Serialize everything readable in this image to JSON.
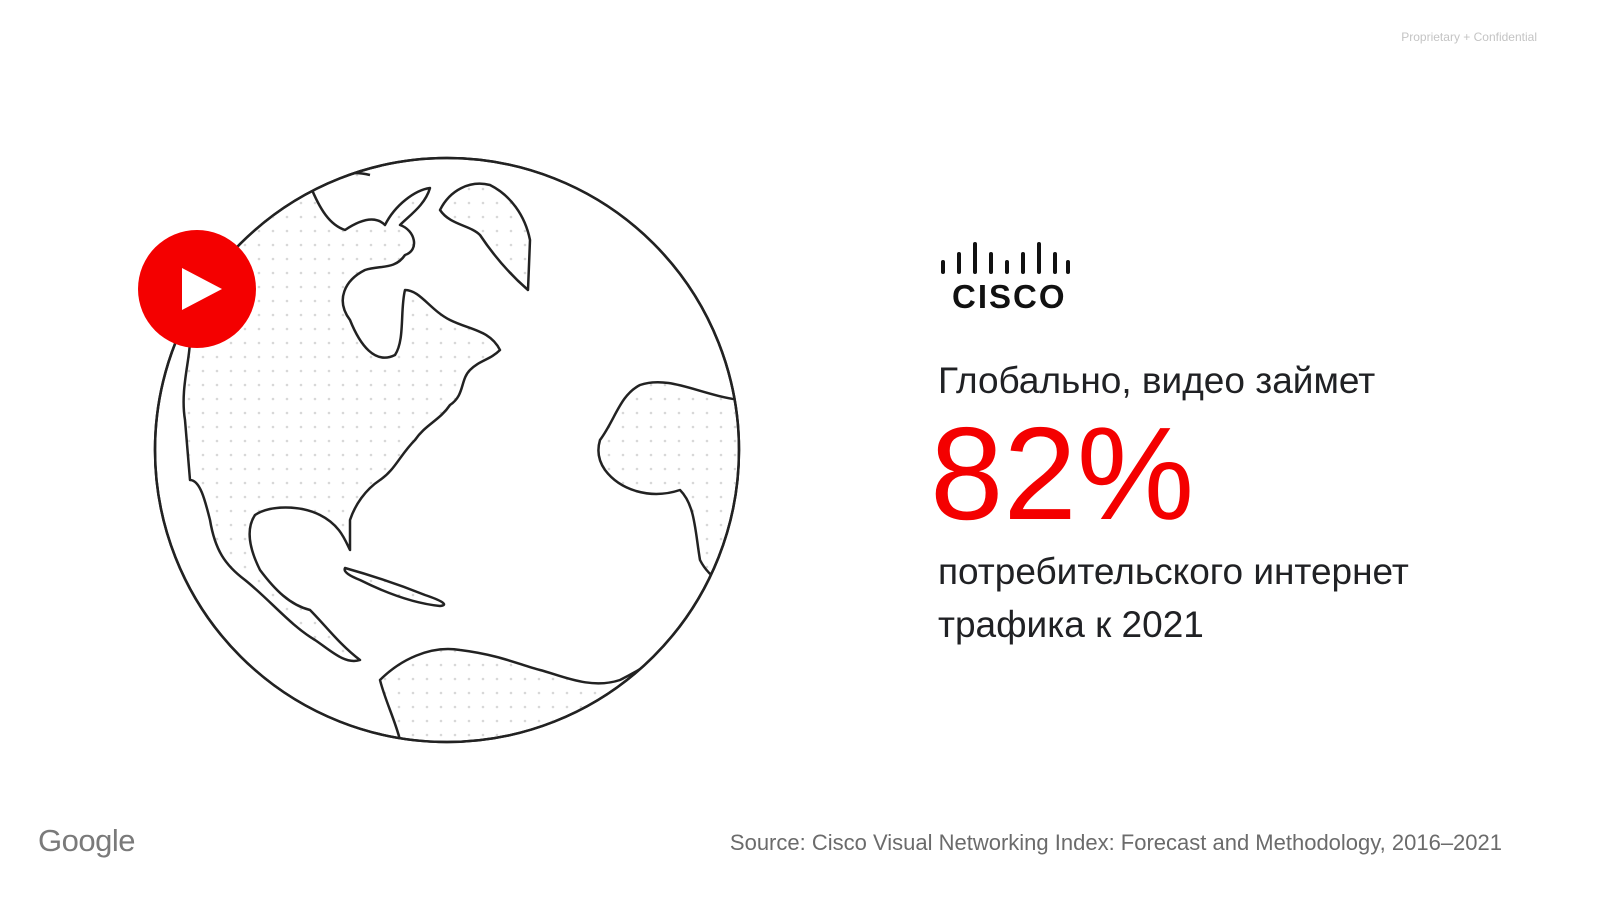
{
  "header": {
    "confidential": "Proprietary + Confidential"
  },
  "logo": {
    "text": "cisco"
  },
  "statement": {
    "lead": "Глобально, видео  займет",
    "figure": "82%",
    "line1": "потребительского интернет",
    "line2": "трафика к 2021"
  },
  "footer": {
    "source": "Source: Cisco Visual Networking Index: Forecast and Methodology, 2016–2021",
    "brand": "Google"
  }
}
